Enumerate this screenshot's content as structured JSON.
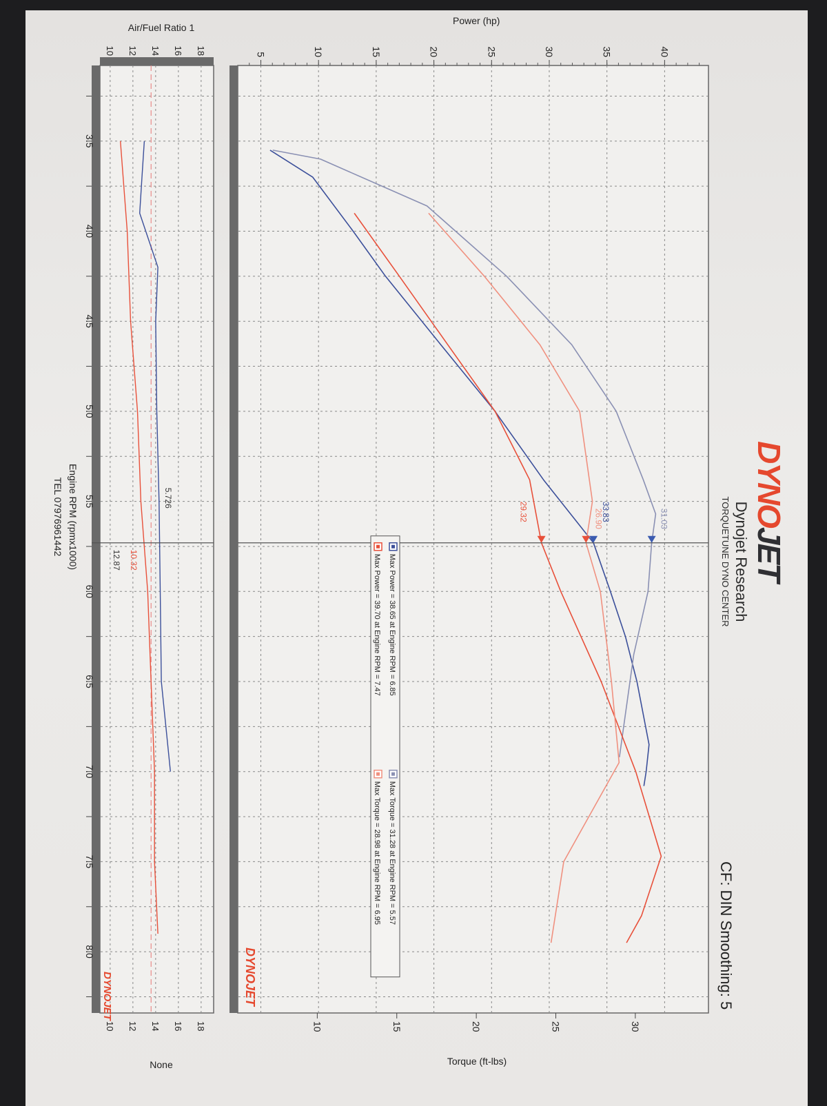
{
  "header": {
    "logo": "DYNOJET",
    "logo_parts": [
      "DYNO",
      "JET"
    ],
    "company": "Dynojet Research",
    "center": "TORQUETUNE DYNO CENTER",
    "correction": "CF: DIN Smoothing: 5",
    "phone": "TEL 07976961442"
  },
  "watermark_logo": "DYNOJET",
  "colors": {
    "blue_power": "#3b4f9a",
    "blue_torque": "#8a90b3",
    "red_power": "#e8503a",
    "red_torque": "#f0907f",
    "logo_red": "#e5482e",
    "afr_reference": "#e88a8a"
  },
  "chart_data": [
    {
      "type": "line",
      "xlabel": "Engine RPM (rpmx1000)",
      "ylabel": "Power (hp)",
      "y2label": "Torque (ft-lbs)",
      "xticks": [
        "3.5",
        "4.0",
        "4.5",
        "5.0",
        "5.5",
        "6.0",
        "6.5",
        "7.0",
        "7.5",
        "8.0"
      ],
      "xlim": [
        3.08,
        8.34
      ],
      "yticks": [
        "5",
        "10",
        "15",
        "20",
        "25",
        "30",
        "35",
        "40"
      ],
      "ylim": [
        3,
        43.8
      ],
      "y2ticks": [
        "10",
        "15",
        "20",
        "25",
        "30"
      ],
      "y2lim": [
        5,
        34.6
      ],
      "grid": true,
      "legend": [
        "Max Power = 38.65 at Engine RPM = 6.85",
        "Max Torque = 31.28 at Engine RPM = 5.57",
        "Max Power = 39.70 at Engine RPM = 7.47",
        "Max Torque = 28.98 at Engine RPM = 6.95"
      ],
      "legend_placement": "center",
      "cursor_rpm": 5.73,
      "cursor_labels": [
        "31.03",
        "33.83",
        "26.90",
        "29.32"
      ],
      "series": [
        {
          "key": "blue_power",
          "axis": "power",
          "x": [
            3.55,
            3.7,
            4.0,
            4.25,
            4.63,
            5.0,
            5.38,
            5.73,
            6.0,
            6.25,
            6.5,
            6.85,
            7.0,
            7.08
          ],
          "y": [
            5.8,
            9.5,
            13.0,
            15.8,
            20.6,
            25.3,
            29.5,
            33.83,
            35.3,
            36.6,
            37.6,
            38.65,
            38.4,
            38.2
          ]
        },
        {
          "key": "blue_torque",
          "axis": "torque",
          "x": [
            3.55,
            3.6,
            3.86,
            4.25,
            4.63,
            5.0,
            5.38,
            5.57,
            5.73,
            6.0,
            6.35,
            6.73,
            6.92
          ],
          "y": [
            7.2,
            10.2,
            16.9,
            21.9,
            26.0,
            28.8,
            30.5,
            31.28,
            31.03,
            30.8,
            29.9,
            29.3,
            29.0
          ]
        },
        {
          "key": "red_power",
          "axis": "power",
          "x": [
            3.9,
            4.25,
            4.63,
            5.0,
            5.38,
            5.73,
            6.0,
            6.5,
            7.0,
            7.47,
            7.8,
            7.95
          ],
          "y": [
            13.1,
            17.0,
            21.2,
            25.3,
            28.3,
            29.32,
            31.0,
            34.5,
            37.5,
            39.7,
            38.0,
            36.7
          ],
          "label": ""
        },
        {
          "key": "red_torque",
          "axis": "torque",
          "x": [
            3.9,
            4.25,
            4.63,
            5.0,
            5.5,
            5.73,
            6.0,
            6.5,
            6.95,
            7.5,
            7.95
          ],
          "y": [
            17.0,
            20.5,
            24.0,
            26.5,
            27.3,
            26.9,
            27.8,
            28.5,
            28.98,
            25.5,
            24.7
          ]
        }
      ]
    },
    {
      "type": "line",
      "ylabel": "Air/Fuel Ratio 1",
      "y2label": "None",
      "yticks": [
        "10",
        "12",
        "14",
        "16",
        "18"
      ],
      "ylim": [
        9.1,
        19.1
      ],
      "xlim": [
        3.08,
        8.34
      ],
      "grid": true,
      "reference_afr": 13.6,
      "cursor_labels": [
        "5.726",
        "10.32",
        "12.87"
      ],
      "series": [
        {
          "key": "blue_power",
          "x": [
            3.5,
            3.7,
            3.9,
            4.2,
            4.5,
            5.0,
            5.5,
            6.0,
            6.5,
            7.0
          ],
          "y": [
            13.0,
            12.8,
            12.6,
            14.2,
            14.0,
            14.1,
            14.3,
            14.4,
            14.5,
            15.3
          ]
        },
        {
          "key": "red_power",
          "x": [
            3.5,
            4.0,
            4.5,
            5.0,
            5.5,
            6.0,
            6.5,
            7.0,
            7.5,
            7.9
          ],
          "y": [
            10.9,
            11.5,
            11.8,
            12.4,
            12.7,
            13.3,
            13.6,
            13.9,
            13.9,
            14.2
          ]
        }
      ]
    }
  ]
}
